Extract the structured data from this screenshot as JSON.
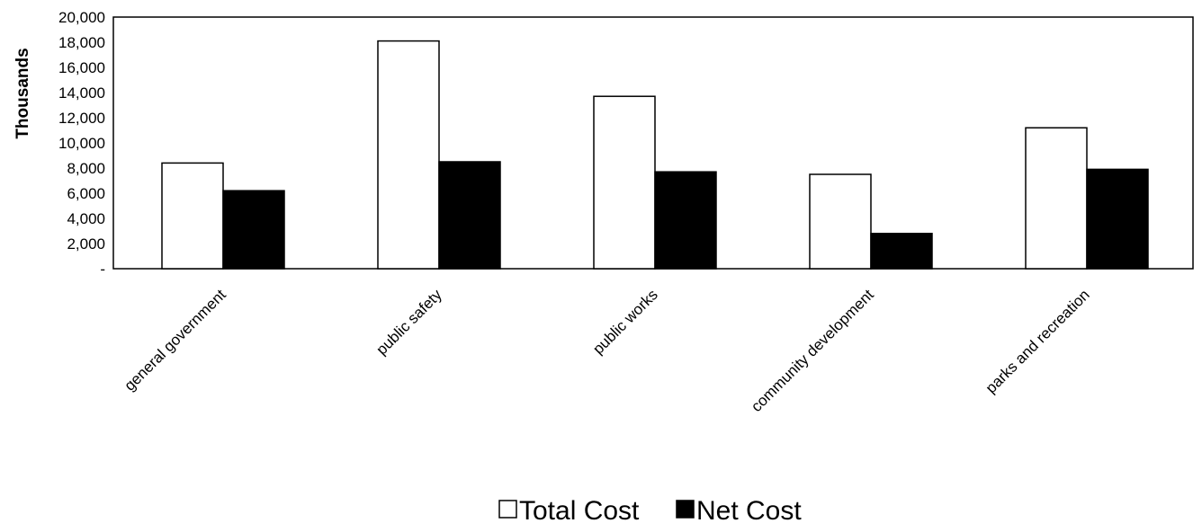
{
  "chart_data": {
    "type": "bar",
    "title": "",
    "xlabel": "",
    "ylabel": "Thousands",
    "ylim": [
      0,
      20000
    ],
    "yticks": [
      0,
      2000,
      4000,
      6000,
      8000,
      10000,
      12000,
      14000,
      16000,
      18000,
      20000
    ],
    "ytick_labels": [
      "-",
      "2,000",
      "4,000",
      "6,000",
      "8,000",
      "10,000",
      "12,000",
      "14,000",
      "16,000",
      "18,000",
      "20,000"
    ],
    "categories": [
      "general government",
      "public safety",
      "public works",
      "community development",
      "parks and recreation"
    ],
    "series": [
      {
        "name": "Total Cost",
        "values": [
          8400,
          18100,
          13700,
          7500,
          11200
        ],
        "color": "#ffffff"
      },
      {
        "name": "Net Cost",
        "values": [
          6200,
          8500,
          7700,
          2800,
          7900
        ],
        "color": "#000000"
      }
    ],
    "grid": false,
    "legend": {
      "position": "bottom-center"
    }
  }
}
